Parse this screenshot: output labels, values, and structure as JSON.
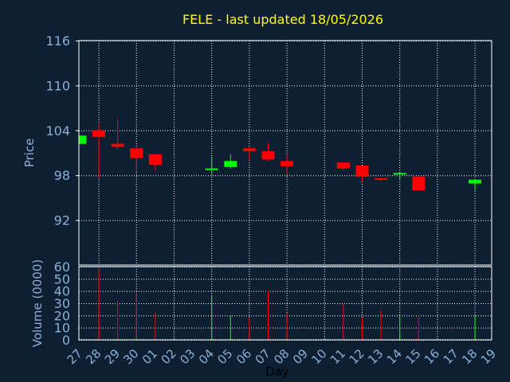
{
  "colors": {
    "background": "#0f1f32",
    "plot_border": "#ffffff",
    "grid": "#ffffff",
    "axis_text": "#8ab0d6",
    "title": "#ffff00",
    "up": "#00ff00",
    "down": "#ff0000"
  },
  "chart_data": [
    {
      "type": "candlestick",
      "title": "FELE - last updated 18/05/2026",
      "ylabel": "Price",
      "xlabel": "",
      "ylim": [
        86,
        116
      ],
      "yticks": [
        116,
        110,
        104,
        98,
        92
      ],
      "grid": true,
      "days": [
        "27",
        "28",
        "29",
        "30",
        "01",
        "02",
        "03",
        "04",
        "05",
        "06",
        "07",
        "08",
        "09",
        "10",
        "11",
        "12",
        "13",
        "14",
        "15",
        "16",
        "17",
        "18",
        "19"
      ],
      "candles": [
        {
          "day": "27",
          "open": 102.2,
          "close": 103.3,
          "high": 103.3,
          "low": 102.2
        },
        {
          "day": "28",
          "open": 104.0,
          "close": 103.1,
          "high": 105.0,
          "low": 97.6
        },
        {
          "day": "29",
          "open": 102.2,
          "close": 101.8,
          "high": 105.5,
          "low": 101.5
        },
        {
          "day": "30",
          "open": 101.6,
          "close": 100.3,
          "high": 101.7,
          "low": 98.5
        },
        {
          "day": "01",
          "open": 100.8,
          "close": 99.4,
          "high": 100.8,
          "low": 98.6
        },
        {
          "day": "04",
          "open": 98.6,
          "close": 98.8,
          "high": 100.5,
          "low": 98.2
        },
        {
          "day": "05",
          "open": 99.1,
          "close": 99.9,
          "high": 100.8,
          "low": 98.9
        },
        {
          "day": "06",
          "open": 101.6,
          "close": 101.2,
          "high": 101.8,
          "low": 100.0
        },
        {
          "day": "07",
          "open": 101.2,
          "close": 100.1,
          "high": 102.3,
          "low": 99.9
        },
        {
          "day": "08",
          "open": 99.9,
          "close": 99.2,
          "high": 100.8,
          "low": 98.2
        },
        {
          "day": "11",
          "open": 99.7,
          "close": 98.9,
          "high": 99.7,
          "low": 98.7
        },
        {
          "day": "12",
          "open": 99.3,
          "close": 97.8,
          "high": 99.3,
          "low": 97.2
        },
        {
          "day": "13",
          "open": 97.5,
          "close": 97.3,
          "high": 97.6,
          "low": 97.2
        },
        {
          "day": "14",
          "open": 98.0,
          "close": 98.2,
          "high": 98.5,
          "low": 97.5
        },
        {
          "day": "15",
          "open": 97.8,
          "close": 96.0,
          "high": 97.8,
          "low": 96.0
        },
        {
          "day": "18",
          "open": 96.9,
          "close": 97.4,
          "high": 97.4,
          "low": 96.0
        }
      ]
    },
    {
      "type": "bar",
      "ylabel": "Volume (0000)",
      "xlabel": "Day",
      "ylim": [
        0,
        60
      ],
      "yticks": [
        60,
        50,
        40,
        30,
        20,
        10,
        0
      ],
      "grid": true,
      "categories": [
        "27",
        "28",
        "29",
        "30",
        "01",
        "02",
        "03",
        "04",
        "05",
        "06",
        "07",
        "08",
        "09",
        "10",
        "11",
        "12",
        "13",
        "14",
        "15",
        "16",
        "17",
        "18",
        "19"
      ],
      "values": [
        0,
        58,
        32,
        39,
        22,
        0,
        0,
        36,
        20,
        18,
        40,
        22,
        0,
        0,
        30,
        18,
        24,
        19,
        20,
        0,
        0,
        20,
        0
      ],
      "bar_direction": [
        "",
        "down",
        "down",
        "down",
        "down",
        "",
        "",
        "up",
        "up",
        "down",
        "down",
        "down",
        "",
        "",
        "down",
        "down",
        "down",
        "up",
        "down",
        "",
        "",
        "up",
        ""
      ]
    }
  ]
}
